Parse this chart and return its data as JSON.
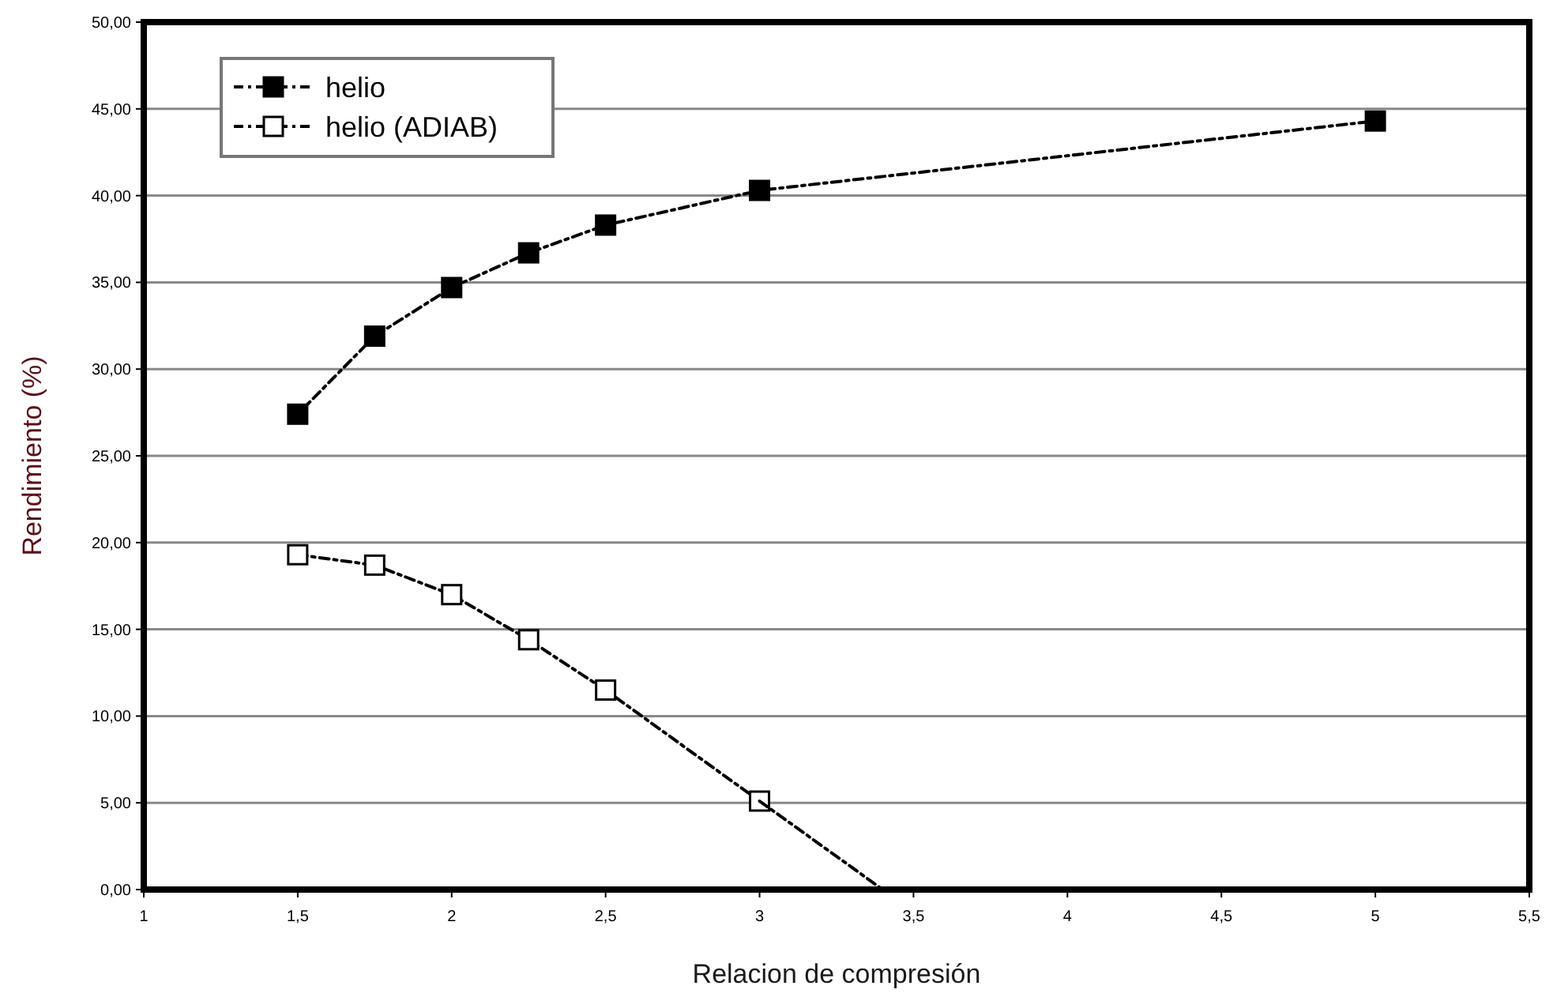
{
  "chart_data": {
    "type": "line",
    "xlabel": "Relacion de compresión",
    "ylabel": "Rendimiento (%)",
    "xlim": [
      1,
      5.5
    ],
    "xticks": [
      1,
      {
        "value": 1.5,
        "label": "1,5"
      },
      2,
      {
        "value": 2.5,
        "label": "2,5"
      },
      3,
      {
        "value": 3.5,
        "label": "3,5"
      },
      4,
      {
        "value": 4.5,
        "label": "4,5"
      },
      5,
      {
        "value": 5.5,
        "label": "5,5"
      }
    ],
    "ylim": [
      0,
      50
    ],
    "yticks": [
      {
        "value": 0,
        "label": "0,00"
      },
      {
        "value": 5,
        "label": "5,00"
      },
      {
        "value": 10,
        "label": "10,00"
      },
      {
        "value": 15,
        "label": "15,00"
      },
      {
        "value": 20,
        "label": "20,00"
      },
      {
        "value": 25,
        "label": "25,00"
      },
      {
        "value": 30,
        "label": "30,00"
      },
      {
        "value": 35,
        "label": "35,00"
      },
      {
        "value": 40,
        "label": "40,00"
      },
      {
        "value": 45,
        "label": "45,00"
      },
      {
        "value": 50,
        "label": "50,00"
      }
    ],
    "grid": "y",
    "legend": "top left",
    "marker": "square",
    "line_style": "dashed",
    "series": [
      {
        "name": "helio",
        "color": "#000000",
        "x": [
          1.5,
          1.75,
          2,
          2.25,
          2.5,
          3,
          5
        ],
        "values": [
          27.4,
          31.9,
          34.7,
          36.7,
          38.3,
          40.3,
          44.3
        ]
      },
      {
        "name": "helio (ADIAB)",
        "color": "#000000",
        "x": [
          1.5,
          1.75,
          2,
          2.25,
          2.5,
          3
        ],
        "values": [
          19.3,
          18.7,
          17.0,
          14.4,
          11.5,
          5.1
        ]
      },
      {
        "type": "line",
        "color": "#000000",
        "marker": "none",
        "x": [
          3,
          3.4
        ],
        "values": [
          5.1,
          0
        ]
      }
    ]
  }
}
